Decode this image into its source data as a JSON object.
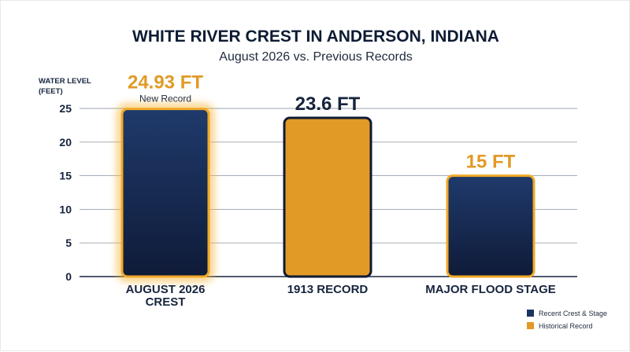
{
  "chart_data": {
    "type": "bar",
    "title": "WHITE RIVER CREST IN ANDERSON, INDIANA",
    "subtitle": "August 2026 vs. Previous Records",
    "ylabel_lines": [
      "WATER LEVEL",
      "(FEET)"
    ],
    "ylim": [
      0,
      25
    ],
    "yticks": [
      0,
      5,
      10,
      15,
      20,
      25
    ],
    "grid": true,
    "categories": [
      [
        "AUGUST 2026",
        "CREST"
      ],
      [
        "1913 RECORD"
      ],
      [
        "MAJOR FLOOD STAGE"
      ]
    ],
    "values": [
      24.93,
      23.6,
      15
    ],
    "data_labels": [
      "24.93 FT",
      "23.6 FT",
      "15 FT"
    ],
    "bar_groups": [
      "Recent Crest & Stage",
      "Historical Record",
      "Recent Crest & Stage"
    ],
    "annotations": [
      "New Record",
      "",
      ""
    ],
    "highlight_index": 0,
    "legend": {
      "placement": "bottom-right",
      "entries": [
        {
          "label": "Recent Crest & Stage",
          "color": "#1c3461"
        },
        {
          "label": "Historical Record",
          "color": "#e19a26"
        }
      ]
    },
    "colors": {
      "navy_top": "#1f3a6b",
      "navy_bottom": "#0f1b38",
      "navy_border": "#0d1a33",
      "gold": "#e19a26",
      "gold_border": "#f0a928",
      "glow": "#f6b22e",
      "label_gold": "#e19a26",
      "label_navy": "#16243d",
      "grid": "#9aa3ae",
      "axis": "#16243d"
    }
  }
}
